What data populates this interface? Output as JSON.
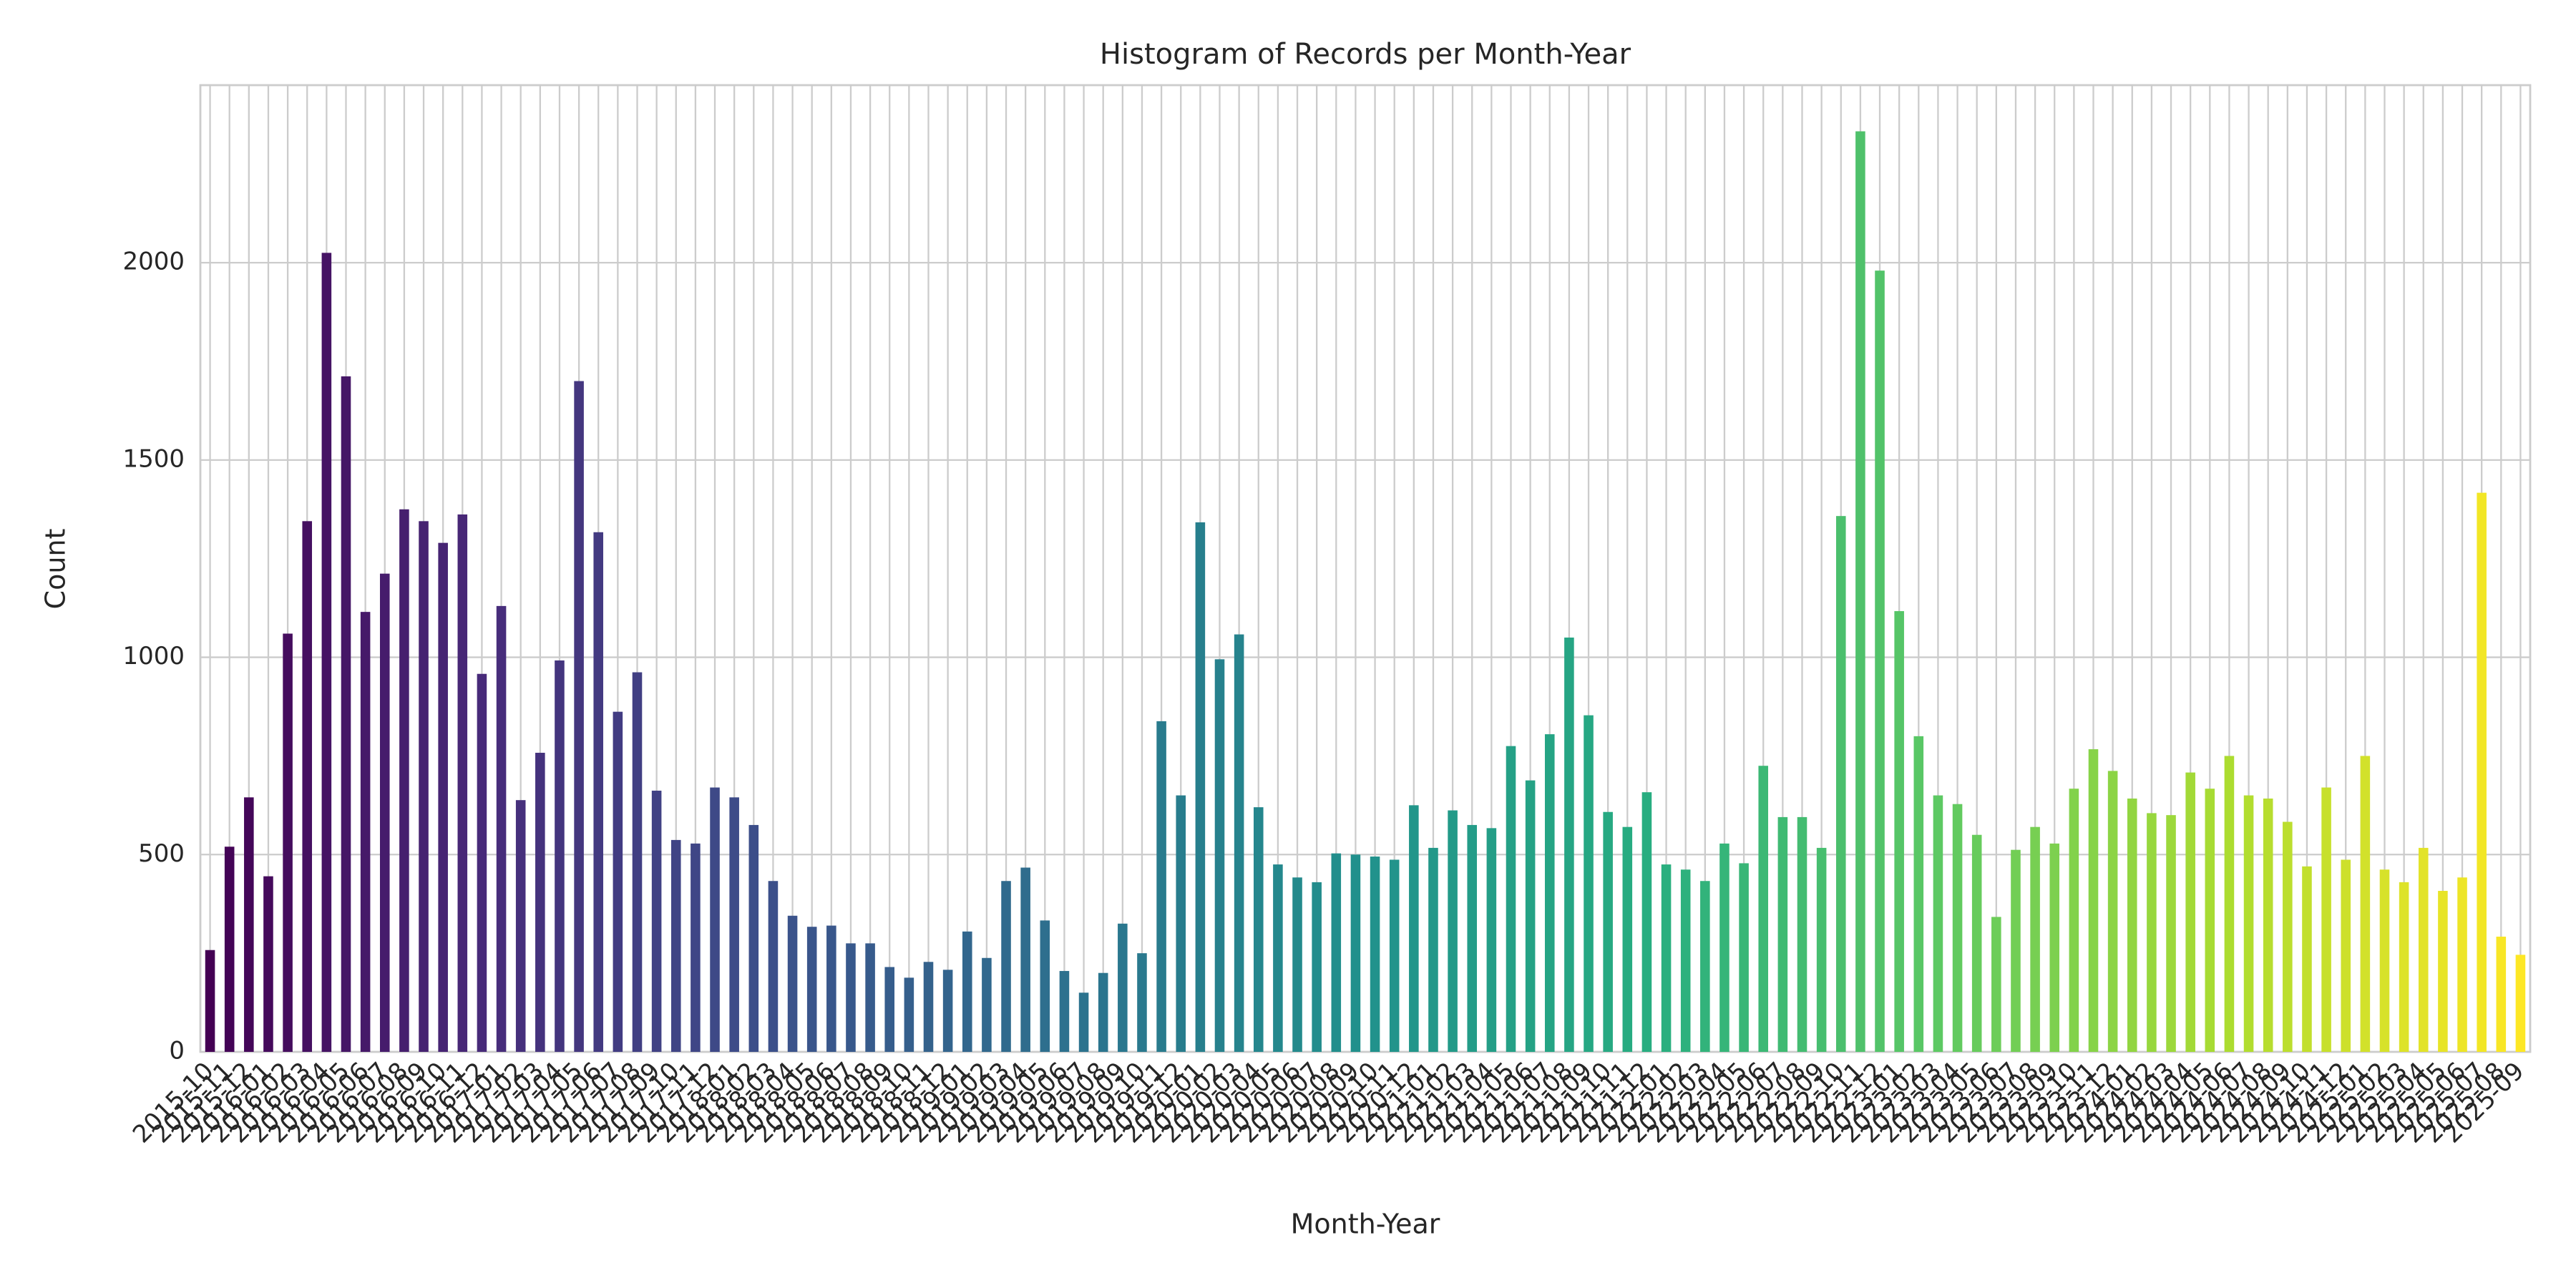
{
  "chart_data": {
    "type": "bar",
    "title": "Histogram of Records per Month-Year",
    "x_label": "Month-Year",
    "y_label": "Count",
    "categories": [
      "2015-10",
      "2015-11",
      "2015-12",
      "2016-01",
      "2016-02",
      "2016-03",
      "2016-04",
      "2016-05",
      "2016-06",
      "2016-07",
      "2016-08",
      "2016-09",
      "2016-10",
      "2016-11",
      "2016-12",
      "2017-01",
      "2017-02",
      "2017-03",
      "2017-04",
      "2017-05",
      "2017-06",
      "2017-07",
      "2017-08",
      "2017-09",
      "2017-10",
      "2017-11",
      "2017-12",
      "2018-01",
      "2018-02",
      "2018-03",
      "2018-04",
      "2018-05",
      "2018-06",
      "2018-07",
      "2018-08",
      "2018-09",
      "2018-10",
      "2018-11",
      "2018-12",
      "2019-01",
      "2019-02",
      "2019-03",
      "2019-04",
      "2019-05",
      "2019-06",
      "2019-07",
      "2019-08",
      "2019-09",
      "2019-10",
      "2019-11",
      "2019-12",
      "2020-01",
      "2020-02",
      "2020-03",
      "2020-04",
      "2020-05",
      "2020-06",
      "2020-07",
      "2020-08",
      "2020-09",
      "2020-10",
      "2020-11",
      "2020-12",
      "2021-01",
      "2021-02",
      "2021-03",
      "2021-04",
      "2021-05",
      "2021-06",
      "2021-07",
      "2021-08",
      "2021-09",
      "2021-10",
      "2021-11",
      "2021-12",
      "2022-01",
      "2022-02",
      "2022-03",
      "2022-04",
      "2022-05",
      "2022-06",
      "2022-07",
      "2022-08",
      "2022-09",
      "2022-10",
      "2022-11",
      "2022-12",
      "2023-01",
      "2023-02",
      "2023-03",
      "2023-04",
      "2023-05",
      "2023-06",
      "2023-07",
      "2023-08",
      "2023-09",
      "2023-10",
      "2023-11",
      "2023-12",
      "2024-01",
      "2024-02",
      "2024-03",
      "2024-04",
      "2024-05",
      "2024-06",
      "2024-07",
      "2024-08",
      "2024-09",
      "2024-10",
      "2024-11",
      "2024-12",
      "2025-01",
      "2025-02",
      "2025-03",
      "2025-04",
      "2025-05",
      "2025-06",
      "2025-07",
      "2025-08",
      "2025-09"
    ],
    "values": [
      258,
      520,
      645,
      445,
      1060,
      1345,
      2025,
      1712,
      1115,
      1212,
      1375,
      1345,
      1290,
      1362,
      958,
      1130,
      638,
      758,
      992,
      1700,
      1317,
      862,
      962,
      662,
      537,
      528,
      670,
      645,
      575,
      433,
      345,
      317,
      320,
      275,
      275,
      215,
      188,
      228,
      208,
      305,
      238,
      433,
      467,
      333,
      205,
      150,
      200,
      325,
      250,
      838,
      650,
      1342,
      995,
      1058,
      620,
      475,
      442,
      430,
      503,
      500,
      495,
      487,
      625,
      517,
      612,
      575,
      567,
      775,
      688,
      805,
      1050,
      853,
      608,
      570,
      658,
      475,
      462,
      433,
      528,
      478,
      725,
      595,
      595,
      517,
      1358,
      2333,
      1980,
      1117,
      800,
      650,
      628,
      550,
      342,
      512,
      570,
      528,
      667,
      767,
      712,
      642,
      605,
      600,
      708,
      667,
      750,
      650,
      642,
      583,
      470,
      670,
      487,
      750,
      462,
      430,
      517,
      408,
      442,
      1417,
      292,
      246
    ],
    "colormap": "viridis",
    "ylim": [
      0,
      2450
    ],
    "yticks": [
      0,
      500,
      1000,
      1500,
      2000
    ],
    "grid": true
  }
}
